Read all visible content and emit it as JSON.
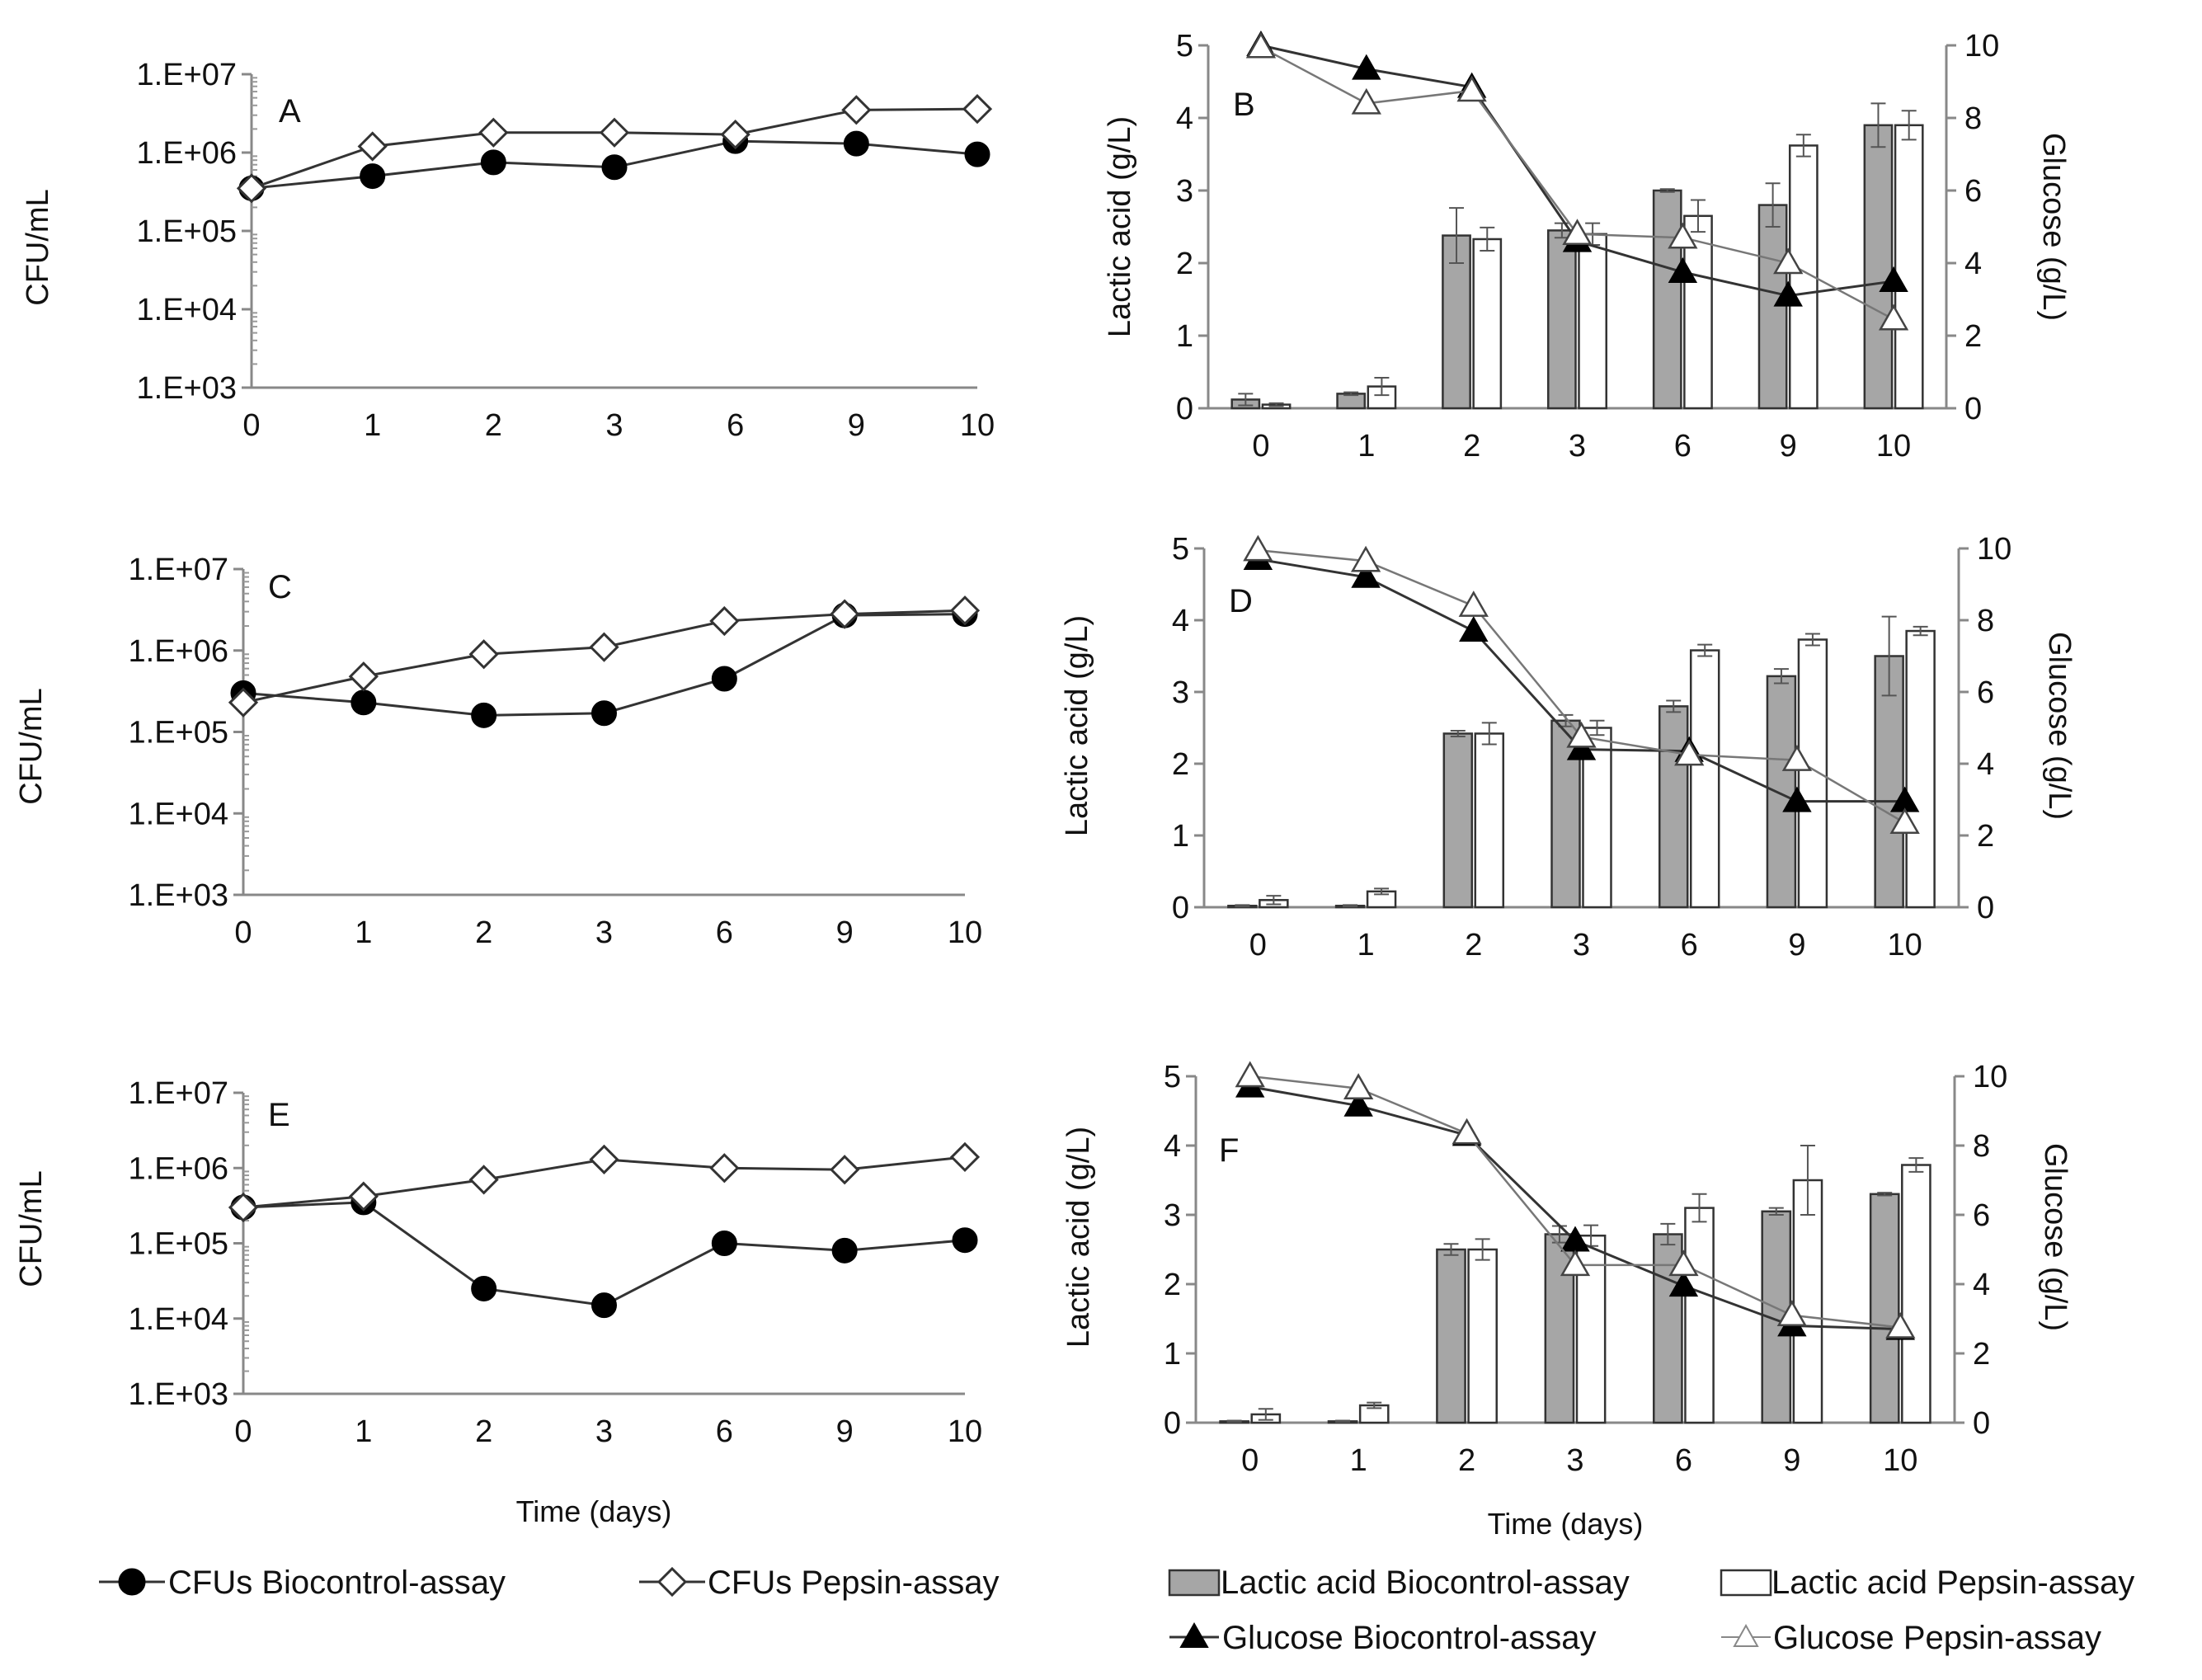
{
  "chart_data": [
    {
      "id": "A",
      "type": "line",
      "panel_label": "A",
      "ylabel": "CFU/mL",
      "xlabel": "",
      "yscale": "log",
      "ylim": [
        1000,
        10000000
      ],
      "yticks": [
        "1.E+03",
        "1.E+04",
        "1.E+05",
        "1.E+06",
        "1.E+07"
      ],
      "categories": [
        "0",
        "1",
        "2",
        "3",
        "6",
        "9",
        "10"
      ],
      "series": [
        {
          "name": "CFUs Biocontrol-assay",
          "marker": "filled-circle",
          "values": [
            350000,
            500000,
            750000,
            650000,
            1400000,
            1300000,
            950000
          ]
        },
        {
          "name": "CFUs Pepsin-assay",
          "marker": "open-diamond",
          "values": [
            350000,
            1200000,
            1800000,
            1800000,
            1700000,
            3500000,
            3600000
          ]
        }
      ]
    },
    {
      "id": "B",
      "type": "bar+line",
      "panel_label": "B",
      "ylabel": "Lactic acid (g/L)",
      "y2label": "Glucose (g/L)",
      "xlabel": "",
      "ylim": [
        0,
        5
      ],
      "y2lim": [
        0,
        10
      ],
      "yticks": [
        "0",
        "1",
        "2",
        "3",
        "4",
        "5"
      ],
      "y2ticks": [
        "0",
        "2",
        "4",
        "6",
        "8",
        "10"
      ],
      "categories": [
        "0",
        "1",
        "2",
        "3",
        "6",
        "9",
        "10"
      ],
      "bars": [
        {
          "name": "Lactic acid Biocontrol-assay",
          "values": [
            0.12,
            0.2,
            2.38,
            2.45,
            3.0,
            2.8,
            3.9
          ],
          "errors": [
            0.08,
            0.02,
            0.38,
            0.1,
            0.02,
            0.3,
            0.3
          ]
        },
        {
          "name": "Lactic acid Pepsin-assay",
          "values": [
            0.05,
            0.3,
            2.33,
            2.4,
            2.65,
            3.62,
            3.9
          ],
          "errors": [
            0.02,
            0.12,
            0.16,
            0.15,
            0.22,
            0.15,
            0.2
          ]
        }
      ],
      "lines": [
        {
          "name": "Glucose Biocontrol-assay",
          "marker": "filled-triangle",
          "values": [
            10.0,
            9.35,
            8.85,
            4.6,
            3.75,
            3.1,
            3.5
          ]
        },
        {
          "name": "Glucose Pepsin-assay",
          "marker": "open-triangle",
          "values": [
            9.95,
            8.4,
            8.75,
            4.8,
            4.7,
            4.0,
            2.45
          ]
        }
      ]
    },
    {
      "id": "C",
      "type": "line",
      "panel_label": "C",
      "ylabel": "CFU/mL",
      "xlabel": "",
      "yscale": "log",
      "ylim": [
        1000,
        10000000
      ],
      "yticks": [
        "1.E+03",
        "1.E+04",
        "1.E+05",
        "1.E+06",
        "1.E+07"
      ],
      "categories": [
        "0",
        "1",
        "2",
        "3",
        "6",
        "9",
        "10"
      ],
      "series": [
        {
          "name": "CFUs Biocontrol-assay",
          "marker": "filled-circle",
          "values": [
            300000,
            230000,
            160000,
            170000,
            450000,
            2700000,
            2800000
          ]
        },
        {
          "name": "CFUs Pepsin-assay",
          "marker": "open-diamond",
          "values": [
            230000,
            480000,
            900000,
            1100000,
            2300000,
            2800000,
            3100000
          ]
        }
      ]
    },
    {
      "id": "D",
      "type": "bar+line",
      "panel_label": "D",
      "ylabel": "Lactic acid (g/L)",
      "y2label": "Glucose (g/L)",
      "xlabel": "",
      "ylim": [
        0,
        5
      ],
      "y2lim": [
        0,
        10
      ],
      "yticks": [
        "0",
        "1",
        "2",
        "3",
        "4",
        "5"
      ],
      "y2ticks": [
        "0",
        "2",
        "4",
        "6",
        "8",
        "10"
      ],
      "categories": [
        "0",
        "1",
        "2",
        "3",
        "6",
        "9",
        "10"
      ],
      "bars": [
        {
          "name": "Lactic acid Biocontrol-assay",
          "values": [
            0.02,
            0.02,
            2.42,
            2.6,
            2.8,
            3.22,
            3.5
          ],
          "errors": [
            0.01,
            0.01,
            0.04,
            0.08,
            0.08,
            0.1,
            0.55
          ]
        },
        {
          "name": "Lactic acid Pepsin-assay",
          "values": [
            0.1,
            0.22,
            2.42,
            2.5,
            3.58,
            3.73,
            3.85
          ],
          "errors": [
            0.06,
            0.04,
            0.15,
            0.1,
            0.08,
            0.08,
            0.06
          ]
        }
      ],
      "lines": [
        {
          "name": "Glucose Biocontrol-assay",
          "marker": "filled-triangle",
          "values": [
            9.7,
            9.2,
            7.7,
            4.4,
            4.35,
            2.95,
            2.95
          ]
        },
        {
          "name": "Glucose Pepsin-assay",
          "marker": "open-triangle",
          "values": [
            9.95,
            9.65,
            8.4,
            4.75,
            4.25,
            4.1,
            2.35
          ]
        }
      ]
    },
    {
      "id": "E",
      "type": "line",
      "panel_label": "E",
      "ylabel": "CFU/mL",
      "xlabel": "Time (days)",
      "yscale": "log",
      "ylim": [
        1000,
        10000000
      ],
      "yticks": [
        "1.E+03",
        "1.E+04",
        "1.E+05",
        "1.E+06",
        "1.E+07"
      ],
      "categories": [
        "0",
        "1",
        "2",
        "3",
        "6",
        "9",
        "10"
      ],
      "series": [
        {
          "name": "CFUs Biocontrol-assay",
          "marker": "filled-circle",
          "values": [
            300000,
            350000,
            25000,
            15000,
            100000,
            80000,
            110000
          ]
        },
        {
          "name": "CFUs Pepsin-assay",
          "marker": "open-diamond",
          "values": [
            300000,
            420000,
            700000,
            1300000,
            1000000,
            950000,
            1400000
          ]
        }
      ]
    },
    {
      "id": "F",
      "type": "bar+line",
      "panel_label": "F",
      "ylabel": "Lactic acid (g/L)",
      "y2label": "Glucose (g/L)",
      "xlabel": "Time (days)",
      "ylim": [
        0,
        5
      ],
      "y2lim": [
        0,
        10
      ],
      "yticks": [
        "0",
        "1",
        "2",
        "3",
        "4",
        "5"
      ],
      "y2ticks": [
        "0",
        "2",
        "4",
        "6",
        "8",
        "10"
      ],
      "categories": [
        "0",
        "1",
        "2",
        "3",
        "6",
        "9",
        "10"
      ],
      "bars": [
        {
          "name": "Lactic acid Biocontrol-assay",
          "values": [
            0.02,
            0.02,
            2.5,
            2.72,
            2.72,
            3.05,
            3.3
          ],
          "errors": [
            0.01,
            0.01,
            0.08,
            0.12,
            0.15,
            0.05,
            0.02
          ]
        },
        {
          "name": "Lactic acid Pepsin-assay",
          "values": [
            0.12,
            0.25,
            2.5,
            2.7,
            3.1,
            3.5,
            3.72
          ],
          "errors": [
            0.08,
            0.04,
            0.15,
            0.15,
            0.2,
            0.5,
            0.1
          ]
        }
      ],
      "lines": [
        {
          "name": "Glucose Biocontrol-assay",
          "marker": "filled-triangle",
          "values": [
            9.7,
            9.15,
            8.3,
            5.25,
            3.95,
            2.8,
            2.7
          ]
        },
        {
          "name": "Glucose Pepsin-assay",
          "marker": "open-triangle",
          "values": [
            10.0,
            9.65,
            8.35,
            4.55,
            4.55,
            3.1,
            2.75
          ]
        }
      ]
    }
  ],
  "legend": {
    "cfu_biocontrol": "CFUs Biocontrol-assay",
    "cfu_pepsin": "CFUs Pepsin-assay",
    "lactic_biocontrol": "Lactic acid Biocontrol-assay",
    "lactic_pepsin": "Lactic acid Pepsin-assay",
    "glucose_biocontrol": "Glucose Biocontrol-assay",
    "glucose_pepsin": "Glucose Pepsin-assay"
  },
  "colors": {
    "bar_biocontrol": "#a6a6a6",
    "bar_pepsin": "#ffffff",
    "line": "#333333",
    "marker_fill": "#000000"
  }
}
